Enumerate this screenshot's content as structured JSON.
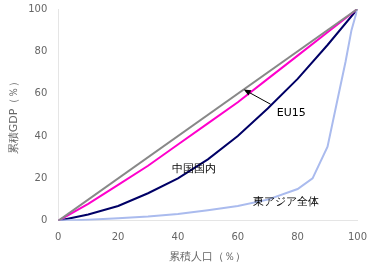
{
  "chart_data": {
    "type": "line",
    "xlabel": "累積人口（％）",
    "ylabel": "累積GDP（％）",
    "xlim": [
      0,
      100
    ],
    "ylim": [
      0,
      100
    ],
    "xticks": [
      0,
      20,
      40,
      60,
      80,
      100
    ],
    "yticks": [
      0,
      20,
      40,
      60,
      80,
      100
    ],
    "grid": false,
    "series": [
      {
        "color": "#888888",
        "x": [
          0,
          100
        ],
        "values": [
          0,
          100
        ]
      },
      {
        "color": "#AABBEE",
        "x": [
          0,
          10,
          20,
          30,
          40,
          50,
          60,
          70,
          80,
          85,
          90,
          93,
          96,
          98,
          100
        ],
        "values": [
          0,
          0.5,
          1.2,
          2.0,
          3.2,
          5.0,
          7.0,
          10.0,
          15,
          20,
          35,
          55,
          75,
          90,
          100
        ]
      },
      {
        "color": "#FF00CC",
        "x": [
          0,
          10,
          20,
          30,
          40,
          50,
          60,
          70,
          80,
          90,
          100
        ],
        "values": [
          0,
          8,
          17,
          26,
          36,
          46,
          56,
          67,
          78,
          89,
          100
        ]
      },
      {
        "color": "#000066",
        "x": [
          0,
          10,
          20,
          30,
          40,
          50,
          60,
          70,
          80,
          90,
          100
        ],
        "values": [
          0,
          3,
          7,
          13,
          20,
          29,
          40,
          53,
          67,
          83,
          100
        ]
      }
    ],
    "annotations": [
      {
        "text": "EU15",
        "x": 73,
        "y": 48
      },
      {
        "text": "中国国内",
        "x": 38,
        "y": 22
      },
      {
        "text": "東アジア全体",
        "x": 65,
        "y": 6
      }
    ],
    "arrows": [
      {
        "from": [
          71,
          55
        ],
        "to": [
          62,
          62
        ]
      }
    ]
  }
}
